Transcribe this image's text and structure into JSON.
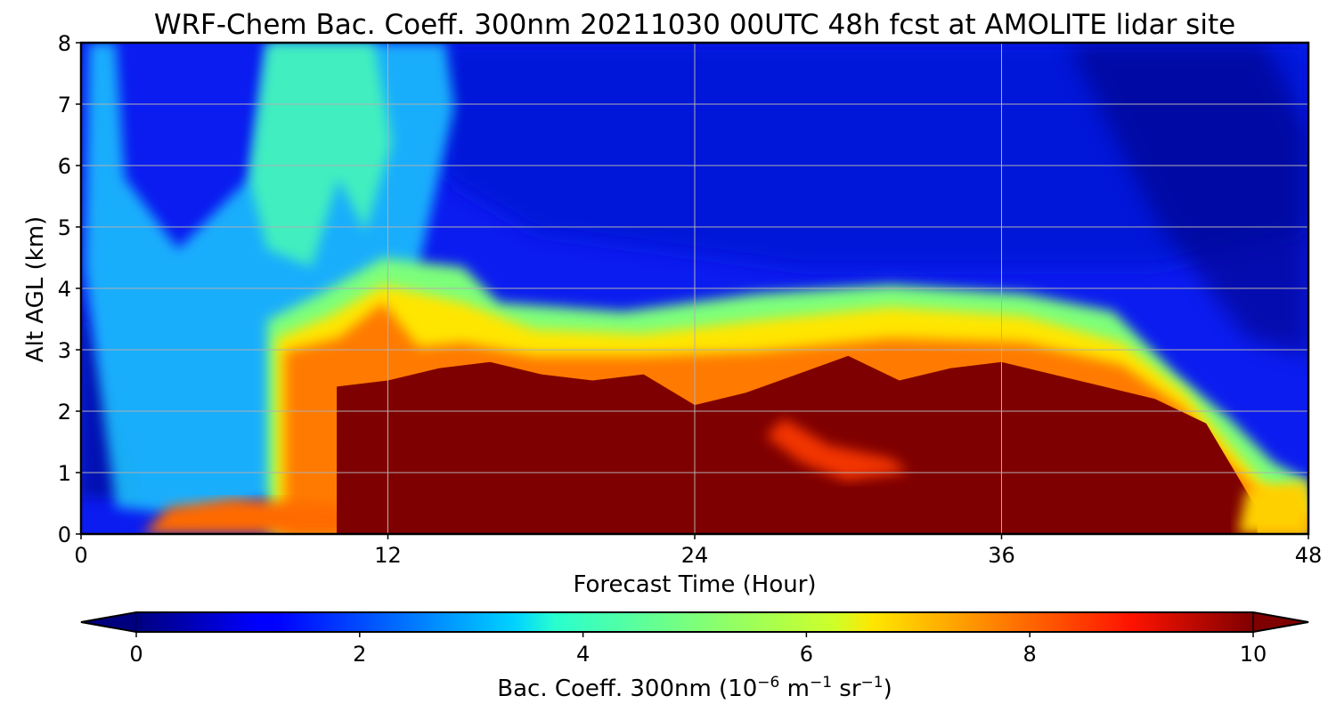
{
  "chart_data": {
    "type": "heatmap",
    "title": "WRF-Chem Bac. Coeff. 300nm  20211030 00UTC 48h fcst at AMOLITE lidar site",
    "xlabel": "Forecast Time (Hour)",
    "ylabel": "Alt AGL (km)",
    "xlim": [
      0,
      48
    ],
    "ylim": [
      0,
      8
    ],
    "x_ticks": [
      "0",
      "12",
      "24",
      "36",
      "48"
    ],
    "x_tick_values": [
      0,
      12,
      24,
      36,
      48
    ],
    "y_ticks": [
      "0",
      "1",
      "2",
      "3",
      "4",
      "5",
      "6",
      "7",
      "8"
    ],
    "y_tick_values": [
      0,
      1,
      2,
      3,
      4,
      5,
      6,
      7,
      8
    ],
    "grid": true,
    "colormap": "jet",
    "colorbar": {
      "label_main": "Bac. Coeff. 300nm  (10",
      "label_exp1": "−6",
      "label_mid": " m",
      "label_exp2": "−1",
      "label_mid2": " sr",
      "label_exp3": "−1",
      "label_end": ")",
      "range": [
        0,
        10
      ],
      "ticks": [
        "0",
        "2",
        "4",
        "6",
        "8",
        "10"
      ],
      "tick_values": [
        0,
        2,
        4,
        6,
        8,
        10
      ],
      "extend": "both"
    },
    "saturated_layer_top_km": [
      [
        10,
        2.4
      ],
      [
        12,
        2.5
      ],
      [
        14,
        2.7
      ],
      [
        16,
        2.8
      ],
      [
        18,
        2.6
      ],
      [
        20,
        2.5
      ],
      [
        22,
        2.6
      ],
      [
        24,
        2.1
      ],
      [
        26,
        2.3
      ],
      [
        28,
        2.6
      ],
      [
        30,
        2.9
      ],
      [
        32,
        2.5
      ],
      [
        34,
        2.7
      ],
      [
        36,
        2.8
      ],
      [
        38,
        2.6
      ],
      [
        40,
        2.4
      ],
      [
        42,
        2.2
      ],
      [
        44,
        1.8
      ],
      [
        46,
        0.4
      ]
    ],
    "plume_peaks_km": [
      [
        12,
        4.3
      ],
      [
        15,
        4.6
      ],
      [
        8,
        3.4
      ]
    ]
  }
}
